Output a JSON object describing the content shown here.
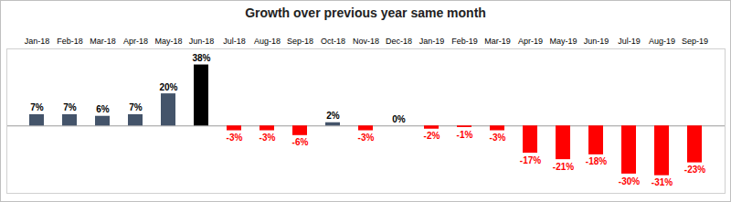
{
  "chart_data": {
    "type": "bar",
    "title": "Growth over previous year same month",
    "categories": [
      "Jan-18",
      "Feb-18",
      "Mar-18",
      "Apr-18",
      "May-18",
      "Jun-18",
      "Jul-18",
      "Aug-18",
      "Sep-18",
      "Oct-18",
      "Nov-18",
      "Dec-18",
      "Jan-19",
      "Feb-19",
      "Mar-19",
      "Apr-19",
      "May-19",
      "Jun-19",
      "Jul-19",
      "Aug-19",
      "Sep-19"
    ],
    "values": [
      7,
      7,
      6,
      7,
      20,
      38,
      -3,
      -3,
      -6,
      2,
      -3,
      0,
      -2,
      -1,
      -3,
      -17,
      -21,
      -18,
      -30,
      -31,
      -23
    ],
    "value_labels": [
      "7%",
      "7%",
      "6%",
      "7%",
      "20%",
      "38%",
      "-3%",
      "-3%",
      "-6%",
      "2%",
      "-3%",
      "0%",
      "-2%",
      "-1%",
      "-3%",
      "-17%",
      "-21%",
      "-18%",
      "-30%",
      "-31%",
      "-23%"
    ],
    "colors": [
      "#44546a",
      "#44546a",
      "#44546a",
      "#44546a",
      "#44546a",
      "#000000",
      "#ff0000",
      "#ff0000",
      "#ff0000",
      "#44546a",
      "#ff0000",
      "#ff0000",
      "#ff0000",
      "#ff0000",
      "#ff0000",
      "#ff0000",
      "#ff0000",
      "#ff0000",
      "#ff0000",
      "#ff0000",
      "#ff0000"
    ],
    "ylim": [
      -42,
      48
    ],
    "yticks": [
      0
    ],
    "data_labels": true,
    "tick_labels": "x",
    "grid": true
  }
}
